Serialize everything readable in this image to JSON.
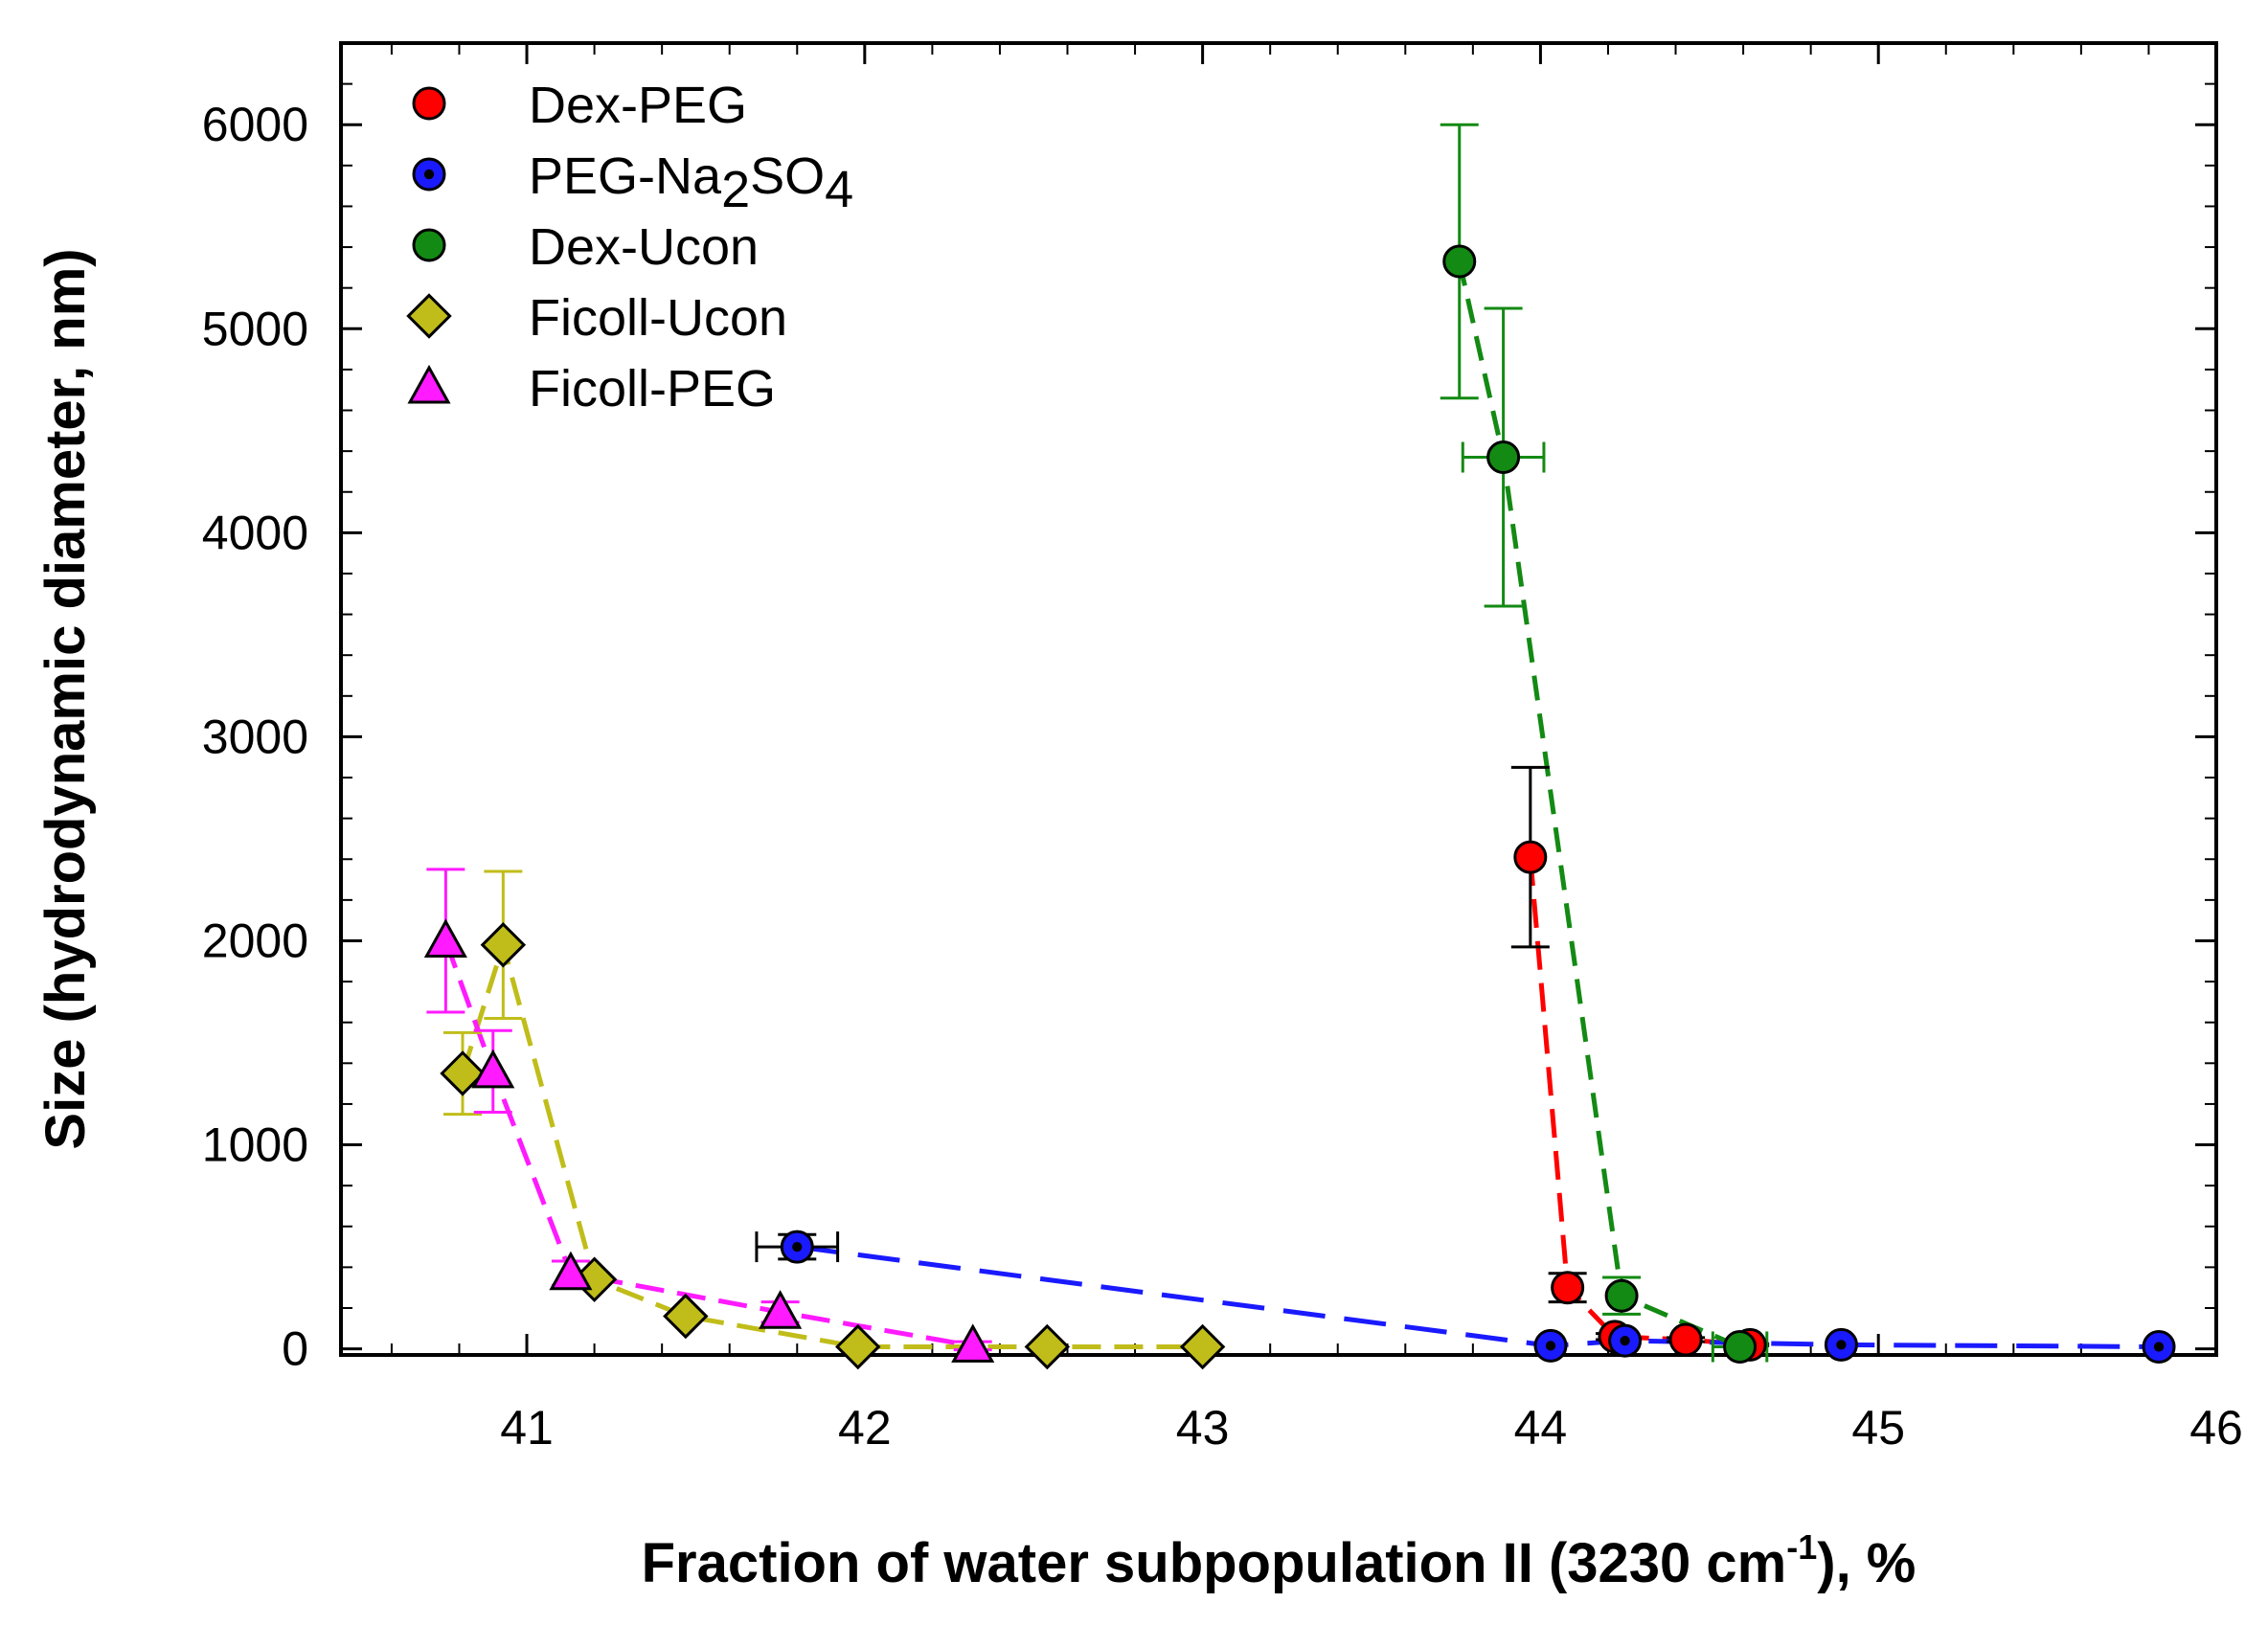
{
  "chart_data": {
    "type": "scatter",
    "title": "",
    "xlabel": "Fraction of water subpopulation II (3230 cm-1), %",
    "xlabel_parts": {
      "before": "Fraction of water subpopulation II (3230 cm",
      "sup": "-1",
      "after": "), %"
    },
    "ylabel": "Size (hydrodynamic diameter, nm)",
    "xlim": [
      40.45,
      46
    ],
    "ylim": [
      -30,
      6400
    ],
    "xticks": [
      41,
      42,
      43,
      44,
      45,
      46
    ],
    "yticks": [
      0,
      1000,
      2000,
      3000,
      4000,
      5000,
      6000
    ],
    "legend_position": "top-left",
    "series": [
      {
        "name": "Dex-PEG",
        "label_parts": [
          "Dex-PEG"
        ],
        "marker": "circle",
        "color": "#ff0000",
        "line_color": "#ff0000",
        "errorbar_color": "#000000",
        "points": [
          {
            "x": 43.97,
            "y": 2410,
            "yerr": 440
          },
          {
            "x": 44.08,
            "y": 300,
            "yerr": 70
          },
          {
            "x": 44.22,
            "y": 60,
            "yerr": 15
          },
          {
            "x": 44.43,
            "y": 45,
            "yerr": 10
          },
          {
            "x": 44.62,
            "y": 20,
            "yerr": 5
          }
        ]
      },
      {
        "name": "PEG-Na2SO4",
        "label_parts": [
          "PEG-Na",
          "2",
          "SO",
          "4"
        ],
        "marker": "circle-dot",
        "color": "#1a1aff",
        "line_color": "#1a1aff",
        "errorbar_color": "#000000",
        "points": [
          {
            "x": 41.8,
            "y": 500,
            "xerr": 0.12,
            "yerr": 60
          },
          {
            "x": 44.03,
            "y": 15
          },
          {
            "x": 44.25,
            "y": 40
          },
          {
            "x": 44.89,
            "y": 20
          },
          {
            "x": 45.83,
            "y": 10
          }
        ]
      },
      {
        "name": "Dex-Ucon",
        "label_parts": [
          "Dex-Ucon"
        ],
        "marker": "circle",
        "color": "#138a13",
        "line_color": "#138a13",
        "errorbar_color": "#138a13",
        "points": [
          {
            "x": 43.76,
            "y": 5330,
            "yerr": 670
          },
          {
            "x": 43.89,
            "y": 4370,
            "yerr": 730,
            "xerr": 0.12
          },
          {
            "x": 44.24,
            "y": 260,
            "yerr": 90
          },
          {
            "x": 44.59,
            "y": 10,
            "xerr": 0.08
          }
        ]
      },
      {
        "name": "Ficoll-Ucon",
        "label_parts": [
          "Ficoll-Ucon"
        ],
        "marker": "diamond",
        "color": "#c0bd1a",
        "line_color": "#c0bd1a",
        "errorbar_color": "#c0bd1a",
        "points": [
          {
            "x": 40.81,
            "y": 1350,
            "yerr": 200
          },
          {
            "x": 40.93,
            "y": 1980,
            "yerr": 360
          },
          {
            "x": 41.2,
            "y": 340
          },
          {
            "x": 41.47,
            "y": 160
          },
          {
            "x": 41.98,
            "y": 10
          },
          {
            "x": 42.54,
            "y": 10
          },
          {
            "x": 43.0,
            "y": 10
          }
        ]
      },
      {
        "name": "Ficoll-PEG",
        "label_parts": [
          "Ficoll-PEG"
        ],
        "marker": "triangle",
        "color": "#ff1aff",
        "line_color": "#ff1aff",
        "errorbar_color": "#ff1aff",
        "points": [
          {
            "x": 40.76,
            "y": 2000,
            "yerr": 350
          },
          {
            "x": 40.9,
            "y": 1360,
            "yerr": 200
          },
          {
            "x": 41.13,
            "y": 370,
            "yerr": 60
          },
          {
            "x": 41.75,
            "y": 180,
            "yerr": 50
          },
          {
            "x": 42.32,
            "y": 15,
            "yerr": 20
          }
        ]
      }
    ]
  }
}
